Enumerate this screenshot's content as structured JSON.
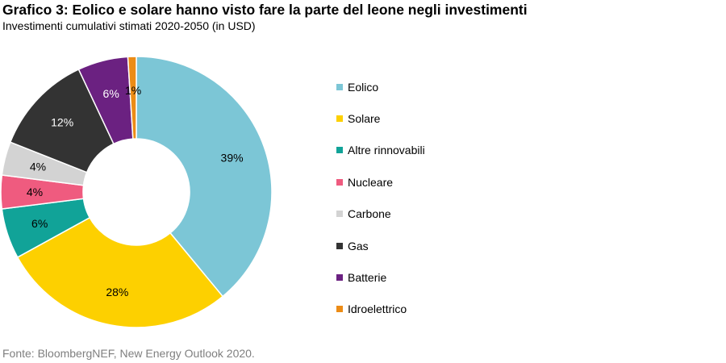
{
  "header": {
    "title": "Grafico 3: Eolico e solare hanno visto fare la parte del leone negli investimenti",
    "subtitle": "Investimenti cumulativi stimati 2020-2050 (in USD)"
  },
  "footer": {
    "source": "Fonte: BloombergNEF, New Energy Outlook 2020."
  },
  "chart_data": {
    "type": "pie",
    "variant": "donut",
    "title": "Grafico 3: Eolico e solare hanno visto fare la parte del leone negli investimenti",
    "subtitle": "Investimenti cumulativi stimati 2020-2050 (in USD)",
    "legend_position": "right",
    "categories": [
      "Eolico",
      "Solare",
      "Altre rinnovabili",
      "Nucleare",
      "Carbone",
      "Gas",
      "Batterie",
      "Idroelettrico"
    ],
    "values": [
      39,
      28,
      6,
      4,
      4,
      12,
      6,
      1
    ],
    "labels": [
      "39%",
      "28%",
      "6%",
      "4%",
      "4%",
      "12%",
      "6%",
      "1%"
    ],
    "colors": [
      "#7cc6d6",
      "#fdd000",
      "#11a398",
      "#ef5b7f",
      "#d3d3d3",
      "#333333",
      "#6b2181",
      "#ec8c16"
    ],
    "label_colors": [
      "#000000",
      "#000000",
      "#000000",
      "#000000",
      "#000000",
      "#ffffff",
      "#ffffff",
      "#000000"
    ]
  }
}
